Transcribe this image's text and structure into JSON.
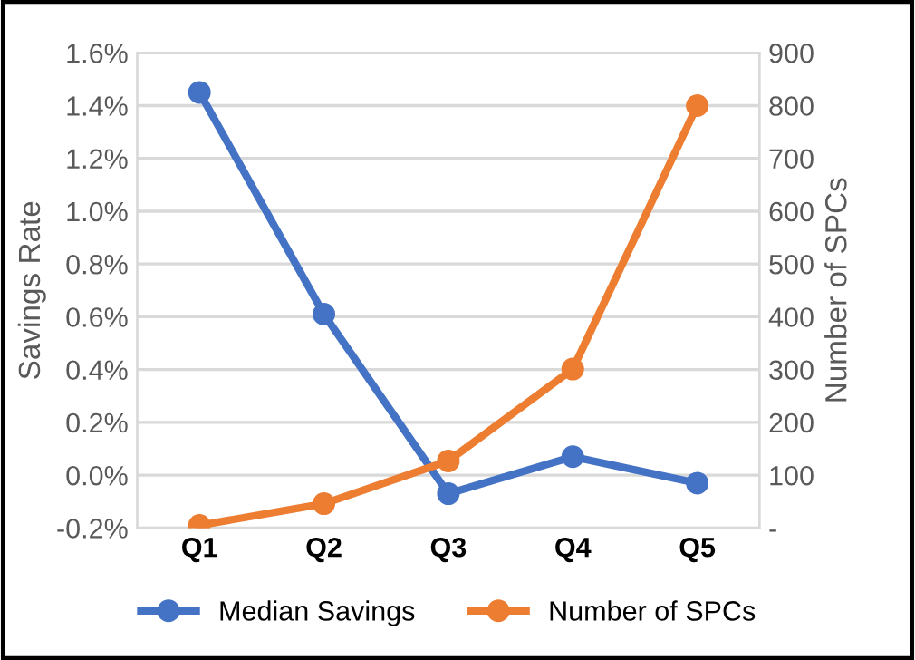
{
  "chart_data": {
    "type": "line",
    "categories": [
      "Q1",
      "Q2",
      "Q3",
      "Q4",
      "Q5"
    ],
    "ylabel": "Savings Rate",
    "y2label": "Number of SPCs",
    "series": [
      {
        "name": "Median Savings",
        "color": "#4472c4",
        "values": [
          1.45,
          0.61,
          -0.07,
          0.07,
          -0.03
        ]
      },
      {
        "name": "Number of SPCs",
        "color": "#ed7d31",
        "axis": "y2",
        "values": [
          5,
          46,
          127,
          301,
          800
        ]
      }
    ],
    "ylim": [
      -0.2,
      1.6
    ],
    "yticks": [
      {
        "value": -0.2,
        "label": "-0.2%"
      },
      {
        "value": 0.0,
        "label": "0.0%"
      },
      {
        "value": 0.2,
        "label": "0.2%"
      },
      {
        "value": 0.4,
        "label": "0.4%"
      },
      {
        "value": 0.6,
        "label": "0.6%"
      },
      {
        "value": 0.8,
        "label": "0.8%"
      },
      {
        "value": 1.0,
        "label": "1.0%"
      },
      {
        "value": 1.2,
        "label": "1.2%"
      },
      {
        "value": 1.4,
        "label": "1.4%"
      },
      {
        "value": 1.6,
        "label": "1.6%"
      }
    ],
    "y2lim": [
      0,
      900
    ],
    "y2ticks": [
      {
        "value": 0,
        "label": "-"
      },
      100,
      200,
      300,
      400,
      500,
      600,
      700,
      800,
      900
    ],
    "grid": "y",
    "legend": "bottom",
    "marker": "circle",
    "line_style": "solid"
  }
}
